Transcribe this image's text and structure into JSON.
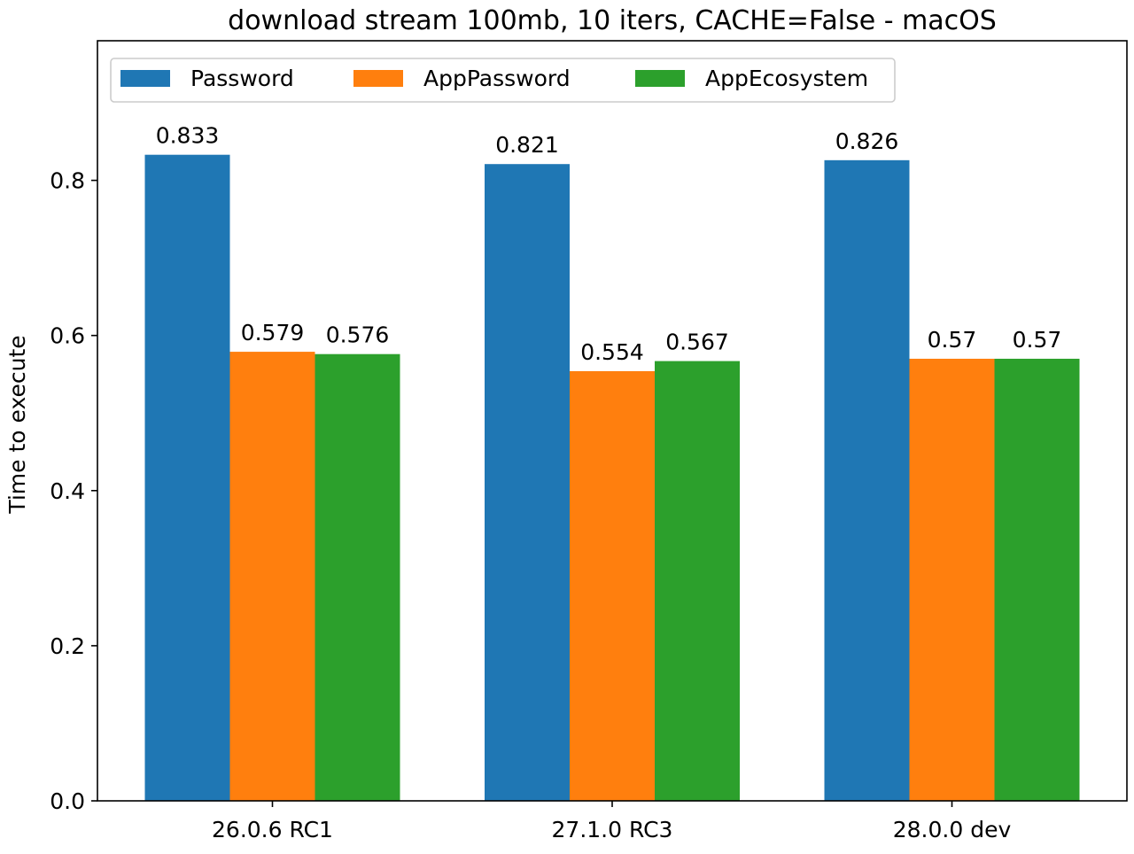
{
  "chart_data": {
    "type": "bar",
    "title": "download stream 100mb, 10 iters, CACHE=False - macOS",
    "xlabel": "",
    "ylabel": "Time to execute",
    "categories": [
      "26.0.6 RC1",
      "27.1.0 RC3",
      "28.0.0 dev"
    ],
    "series": [
      {
        "name": "Password",
        "color": "#1f77b4",
        "values": [
          0.833,
          0.821,
          0.826
        ],
        "labels": [
          "0.833",
          "0.821",
          "0.826"
        ]
      },
      {
        "name": "AppPassword",
        "color": "#ff7f0e",
        "values": [
          0.579,
          0.554,
          0.57
        ],
        "labels": [
          "0.579",
          "0.554",
          "0.57"
        ]
      },
      {
        "name": "AppEcosystem",
        "color": "#2ca02c",
        "values": [
          0.576,
          0.567,
          0.57
        ],
        "labels": [
          "0.576",
          "0.567",
          "0.57"
        ]
      }
    ],
    "ylim": [
      0,
      0.98
    ],
    "yticks": [
      0.0,
      0.2,
      0.4,
      0.6,
      0.8
    ],
    "ytick_labels": [
      "0.0",
      "0.2",
      "0.4",
      "0.6",
      "0.8"
    ],
    "grid": false,
    "legend": {
      "position": "top",
      "columns": 3
    }
  }
}
